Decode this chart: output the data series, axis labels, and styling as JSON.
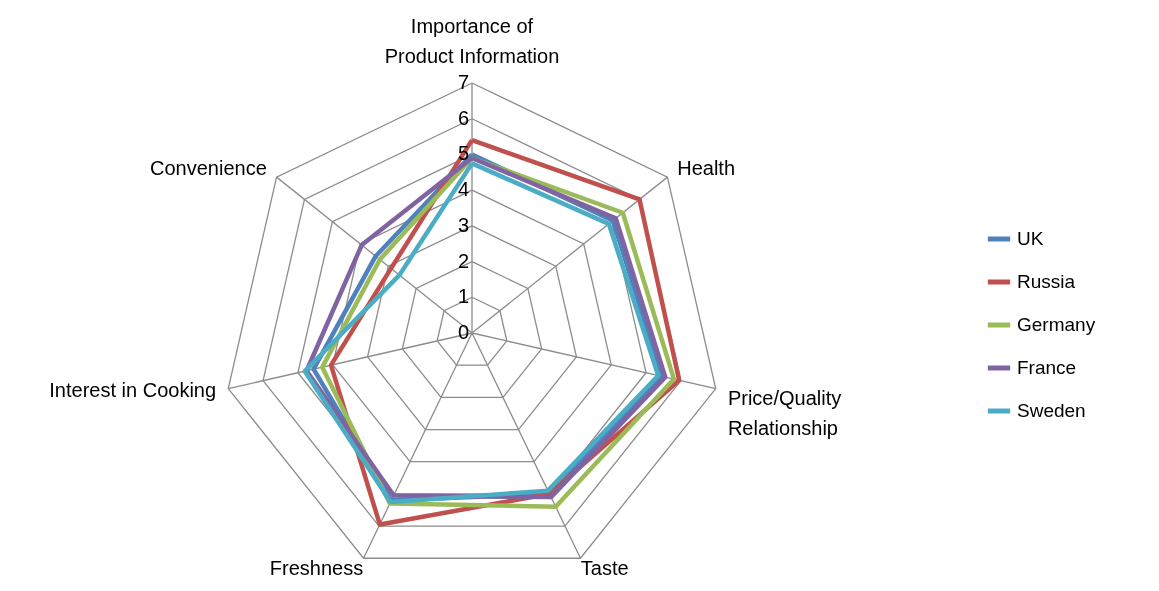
{
  "chart_data": {
    "type": "radar",
    "categories": [
      "Importance of Product Information",
      "Health",
      "Price/Quality Relationship",
      "Taste",
      "Freshness",
      "Interest in Cooking",
      "Convenience"
    ],
    "ylim": [
      0,
      7
    ],
    "yticks": [
      0,
      1,
      2,
      3,
      4,
      5,
      6,
      7
    ],
    "grid": true,
    "legend": "right",
    "series": [
      {
        "name": "UK",
        "color": "#4f81bd",
        "values": [
          5.0,
          5.05,
          5.45,
          5.0,
          5.2,
          4.55,
          3.45
        ]
      },
      {
        "name": "Russia",
        "color": "#c0504d",
        "values": [
          5.4,
          6.0,
          5.95,
          5.0,
          5.95,
          4.05,
          2.9
        ]
      },
      {
        "name": "Germany",
        "color": "#9bbb59",
        "values": [
          4.9,
          5.4,
          5.8,
          5.4,
          5.3,
          4.3,
          3.3
        ]
      },
      {
        "name": "France",
        "color": "#8064a2",
        "values": [
          4.9,
          5.15,
          5.55,
          5.1,
          5.05,
          4.75,
          3.95
        ]
      },
      {
        "name": "Sweden",
        "color": "#4bacc6",
        "values": [
          4.75,
          4.9,
          5.35,
          4.9,
          5.25,
          4.8,
          2.6
        ]
      }
    ]
  }
}
